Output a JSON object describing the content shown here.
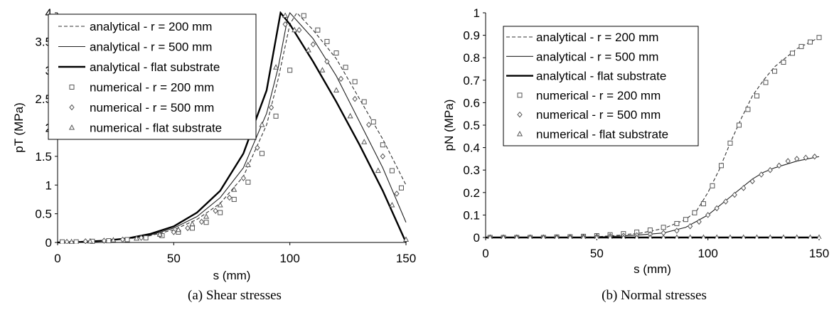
{
  "chart_data": [
    {
      "type": "line",
      "caption": "(a) Shear stresses",
      "xlabel": "s (mm)",
      "ylabel": "pT (MPa)",
      "xlim": [
        0,
        150
      ],
      "ylim": [
        0,
        4
      ],
      "xticks": [
        "0",
        "50",
        "100",
        "150"
      ],
      "yticks": [
        "0",
        "0.5",
        "1",
        "1.5",
        "2",
        "2.5",
        "3",
        "3.5",
        "4"
      ],
      "grid": false,
      "legend_position": "top-left",
      "series": [
        {
          "name": "analytical - r = 200 mm",
          "kind": "line",
          "style": "dashed",
          "x": [
            0,
            10,
            20,
            30,
            40,
            50,
            60,
            70,
            80,
            90,
            95,
            100,
            103,
            110,
            120,
            130,
            140,
            150
          ],
          "y": [
            0,
            0.01,
            0.03,
            0.06,
            0.12,
            0.22,
            0.4,
            0.68,
            1.15,
            2.05,
            2.85,
            3.8,
            4.0,
            3.7,
            3.2,
            2.5,
            1.8,
            1.0
          ]
        },
        {
          "name": "analytical - r = 500 mm",
          "kind": "line",
          "style": "solid-thin",
          "x": [
            0,
            10,
            20,
            30,
            40,
            50,
            60,
            70,
            80,
            90,
            95,
            99,
            100,
            110,
            120,
            130,
            140,
            150
          ],
          "y": [
            0,
            0.01,
            0.03,
            0.07,
            0.13,
            0.25,
            0.45,
            0.78,
            1.3,
            2.25,
            3.05,
            3.9,
            4.0,
            3.55,
            2.9,
            2.1,
            1.3,
            0.35
          ]
        },
        {
          "name": "analytical - flat substrate",
          "kind": "line",
          "style": "solid-thick",
          "x": [
            0,
            10,
            20,
            30,
            40,
            50,
            60,
            70,
            80,
            90,
            96,
            100,
            110,
            120,
            130,
            140,
            150
          ],
          "y": [
            0,
            0.01,
            0.03,
            0.07,
            0.15,
            0.28,
            0.52,
            0.9,
            1.55,
            2.65,
            4.0,
            3.8,
            3.15,
            2.45,
            1.7,
            0.9,
            0
          ]
        },
        {
          "name": "numerical - r = 200 mm",
          "kind": "marker",
          "marker": "square",
          "x": [
            2,
            8,
            15,
            22,
            30,
            38,
            45,
            52,
            58,
            64,
            70,
            76,
            82,
            88,
            94,
            100,
            106,
            112,
            116,
            120,
            124,
            128,
            132,
            136,
            140,
            144,
            148
          ],
          "y": [
            0.01,
            0.01,
            0.02,
            0.03,
            0.05,
            0.08,
            0.12,
            0.18,
            0.25,
            0.35,
            0.52,
            0.75,
            1.05,
            1.55,
            2.2,
            3.0,
            3.95,
            3.7,
            3.5,
            3.3,
            3.05,
            2.8,
            2.45,
            2.1,
            1.7,
            1.25,
            0.95
          ]
        },
        {
          "name": "numerical - r = 500 mm",
          "kind": "marker",
          "marker": "diamond",
          "x": [
            4,
            12,
            20,
            28,
            36,
            44,
            50,
            56,
            62,
            68,
            74,
            80,
            86,
            92,
            98,
            104,
            110,
            116,
            122,
            128,
            134,
            140,
            146
          ],
          "y": [
            0.01,
            0.02,
            0.03,
            0.05,
            0.08,
            0.13,
            0.18,
            0.25,
            0.36,
            0.55,
            0.78,
            1.12,
            1.65,
            2.35,
            3.8,
            3.7,
            3.45,
            3.15,
            2.85,
            2.5,
            2.05,
            1.5,
            0.85
          ]
        },
        {
          "name": "numerical - flat substrate",
          "kind": "marker",
          "marker": "triangle",
          "x": [
            6,
            14,
            24,
            34,
            44,
            52,
            58,
            64,
            70,
            76,
            82,
            88,
            94,
            98,
            102,
            108,
            114,
            120,
            126,
            132,
            138,
            144,
            150
          ],
          "y": [
            0.01,
            0.02,
            0.04,
            0.07,
            0.14,
            0.22,
            0.32,
            0.45,
            0.65,
            0.92,
            1.35,
            2.05,
            3.05,
            3.95,
            3.7,
            3.35,
            3.0,
            2.65,
            2.2,
            1.75,
            1.25,
            0.65,
            0.05
          ]
        }
      ]
    },
    {
      "type": "line",
      "caption": "(b) Normal stresses",
      "xlabel": "s (mm)",
      "ylabel": "pN (MPa)",
      "xlim": [
        0,
        150
      ],
      "ylim": [
        0,
        1
      ],
      "xticks": [
        "0",
        "50",
        "100",
        "150"
      ],
      "yticks": [
        "0",
        "0.1",
        "0.2",
        "0.3",
        "0.4",
        "0.5",
        "0.6",
        "0.7",
        "0.8",
        "0.9",
        "1"
      ],
      "grid": false,
      "legend_position": "top-left",
      "series": [
        {
          "name": "analytical - r = 200 mm",
          "kind": "line",
          "style": "dashed",
          "x": [
            0,
            20,
            40,
            50,
            60,
            70,
            80,
            90,
            95,
            100,
            105,
            110,
            115,
            120,
            125,
            130,
            140,
            150
          ],
          "y": [
            0,
            0,
            0,
            0.003,
            0.01,
            0.02,
            0.04,
            0.08,
            0.12,
            0.2,
            0.3,
            0.42,
            0.53,
            0.63,
            0.7,
            0.76,
            0.84,
            0.89
          ]
        },
        {
          "name": "analytical - r = 500 mm",
          "kind": "line",
          "style": "solid-thin",
          "x": [
            0,
            20,
            40,
            50,
            60,
            70,
            80,
            90,
            100,
            105,
            110,
            115,
            120,
            125,
            130,
            140,
            150
          ],
          "y": [
            0,
            0,
            0,
            0.002,
            0.006,
            0.012,
            0.02,
            0.045,
            0.1,
            0.14,
            0.18,
            0.22,
            0.26,
            0.29,
            0.31,
            0.34,
            0.36
          ]
        },
        {
          "name": "analytical - flat substrate",
          "kind": "line",
          "style": "solid-thick",
          "x": [
            0,
            150
          ],
          "y": [
            0,
            0
          ]
        },
        {
          "name": "numerical - r = 200 mm",
          "kind": "marker",
          "marker": "square",
          "x": [
            2,
            8,
            14,
            20,
            26,
            32,
            38,
            44,
            50,
            56,
            62,
            68,
            74,
            80,
            86,
            90,
            94,
            98,
            102,
            106,
            110,
            114,
            118,
            122,
            126,
            130,
            134,
            138,
            142,
            146,
            150
          ],
          "y": [
            0,
            0,
            0,
            0,
            0,
            0.002,
            0.003,
            0.005,
            0.008,
            0.012,
            0.017,
            0.024,
            0.033,
            0.045,
            0.062,
            0.08,
            0.11,
            0.15,
            0.23,
            0.32,
            0.42,
            0.5,
            0.57,
            0.63,
            0.69,
            0.74,
            0.78,
            0.82,
            0.85,
            0.87,
            0.89
          ]
        },
        {
          "name": "numerical - r = 500 mm",
          "kind": "marker",
          "marker": "diamond",
          "x": [
            2,
            8,
            14,
            20,
            26,
            32,
            38,
            44,
            50,
            56,
            62,
            68,
            74,
            80,
            86,
            92,
            96,
            100,
            104,
            108,
            112,
            116,
            120,
            124,
            128,
            132,
            136,
            140,
            144,
            148
          ],
          "y": [
            0,
            0,
            0,
            0,
            0,
            0.001,
            0.002,
            0.003,
            0.004,
            0.006,
            0.008,
            0.01,
            0.014,
            0.02,
            0.03,
            0.05,
            0.07,
            0.1,
            0.13,
            0.16,
            0.19,
            0.22,
            0.25,
            0.28,
            0.3,
            0.32,
            0.34,
            0.35,
            0.355,
            0.36
          ]
        },
        {
          "name": "numerical - flat substrate",
          "kind": "marker",
          "marker": "triangle",
          "x": [
            2,
            8,
            14,
            20,
            26,
            32,
            38,
            44,
            50,
            56,
            62,
            68,
            74,
            80,
            86,
            92,
            98,
            104,
            110,
            116,
            122,
            128,
            134,
            140,
            146,
            150
          ],
          "y": [
            0,
            0,
            0,
            0,
            0,
            0,
            0,
            0,
            0,
            0,
            0,
            0,
            0,
            0,
            0,
            0,
            0,
            0,
            0,
            0,
            0,
            0,
            0,
            0,
            0,
            0
          ]
        }
      ]
    }
  ]
}
